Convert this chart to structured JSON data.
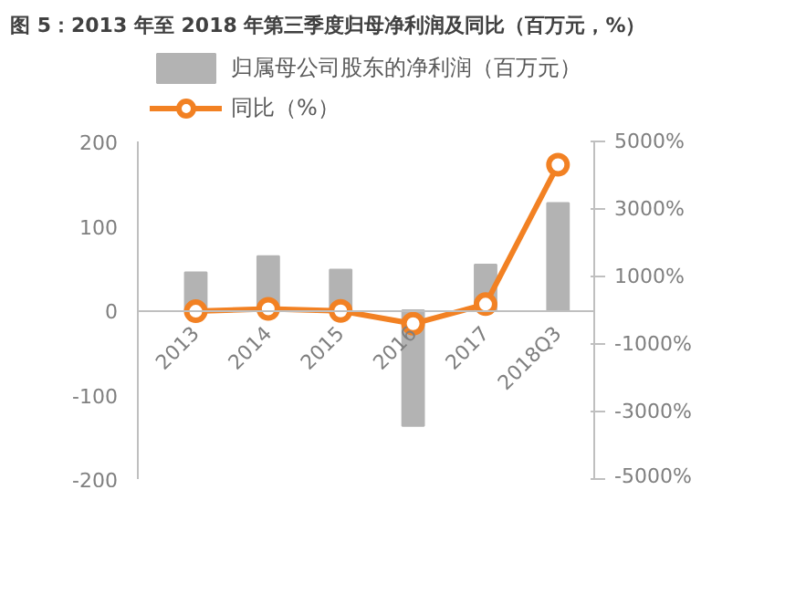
{
  "chart_data": {
    "type": "bar",
    "title": "图 5：2013 年至 2018 年第三季度归母净利润及同比（百万元，%）",
    "categories": [
      "2013",
      "2014",
      "2015",
      "2016",
      "2017",
      "2018Q3"
    ],
    "series": [
      {
        "name": "归属母公司股东的净利润（百万元）",
        "color": "#b3b3b3",
        "values": [
          45,
          64,
          48,
          -137,
          54,
          127
        ]
      },
      {
        "name": "同比（%）",
        "type": "line",
        "axis": "y2",
        "color": "#f28123",
        "marker": "circle",
        "values": [
          -30,
          40,
          -20,
          -400,
          180,
          4310
        ]
      }
    ],
    "ylim": [
      -200,
      200
    ],
    "yticks": [
      -200,
      -100,
      0,
      100,
      200
    ],
    "y2lim": [
      -5000,
      5000
    ],
    "y2ticks": [
      {
        "value": -5000,
        "label": "-5000%"
      },
      {
        "value": -3000,
        "label": "-3000%"
      },
      {
        "value": -1000,
        "label": "-1000%"
      },
      {
        "value": 1000,
        "label": "1000%"
      },
      {
        "value": 3000,
        "label": "3000%"
      },
      {
        "value": 5000,
        "label": "5000%"
      }
    ],
    "grid": false,
    "legend": "top"
  }
}
